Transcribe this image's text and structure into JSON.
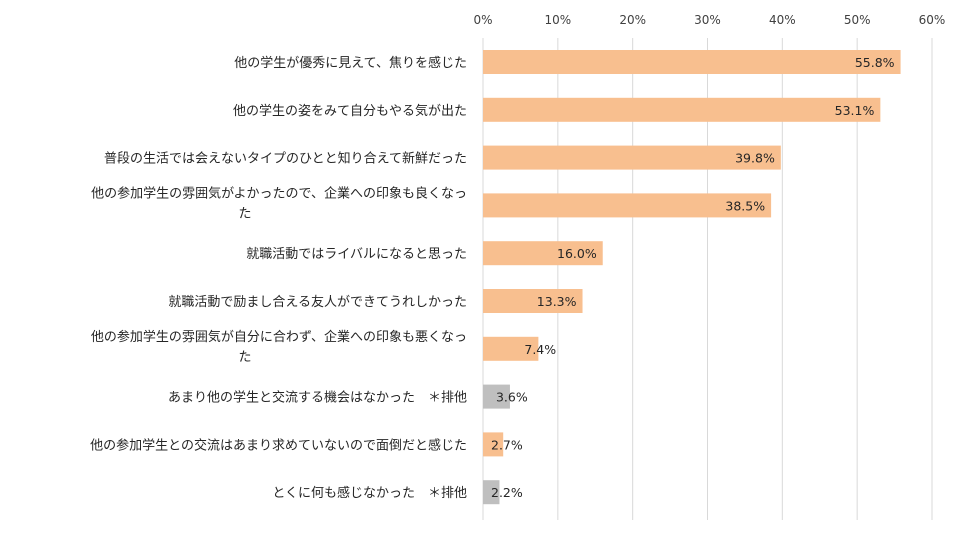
{
  "chart_data": {
    "type": "bar",
    "orientation": "horizontal",
    "categories": [
      [
        "他の学生が優秀に見えて、焦りを感じた"
      ],
      [
        "他の学生の姿をみて自分もやる気が出た"
      ],
      [
        "普段の生活では会えないタイプのひとと知り合えて新鮮だった"
      ],
      [
        "他の参加学生の雰囲気がよかったので、企業への印象も良くなっ",
        "た"
      ],
      [
        "就職活動ではライバルになると思った"
      ],
      [
        "就職活動で励まし合える友人ができてうれしかった"
      ],
      [
        "他の参加学生の雰囲気が自分に合わず、企業への印象も悪くなっ",
        "た"
      ],
      [
        "あまり他の学生と交流する機会はなかった　＊排他"
      ],
      [
        "他の参加学生との交流はあまり求めていないので面倒だと感じた"
      ],
      [
        "とくに何も感じなかった　＊排他"
      ]
    ],
    "values": [
      55.8,
      53.1,
      39.8,
      38.5,
      16.0,
      13.3,
      7.4,
      3.6,
      2.7,
      2.2
    ],
    "value_labels": [
      "55.8%",
      "53.1%",
      "39.8%",
      "38.5%",
      "16.0%",
      "13.3%",
      "7.4%",
      "3.6%",
      "2.7%",
      "2.2%"
    ],
    "exclusive": [
      false,
      false,
      false,
      false,
      false,
      false,
      false,
      true,
      false,
      true
    ],
    "xlim": [
      0,
      60
    ],
    "xticks": [
      0,
      10,
      20,
      30,
      40,
      50,
      60
    ],
    "xtick_labels": [
      "0%",
      "10%",
      "20%",
      "30%",
      "40%",
      "50%",
      "60%"
    ],
    "axis_position": "top",
    "grid": true,
    "colors": {
      "bar": "#f8bf8f",
      "exclusive_bar": "#bfbfbf",
      "grid": "#d9d9d9",
      "text": "#262626"
    }
  }
}
